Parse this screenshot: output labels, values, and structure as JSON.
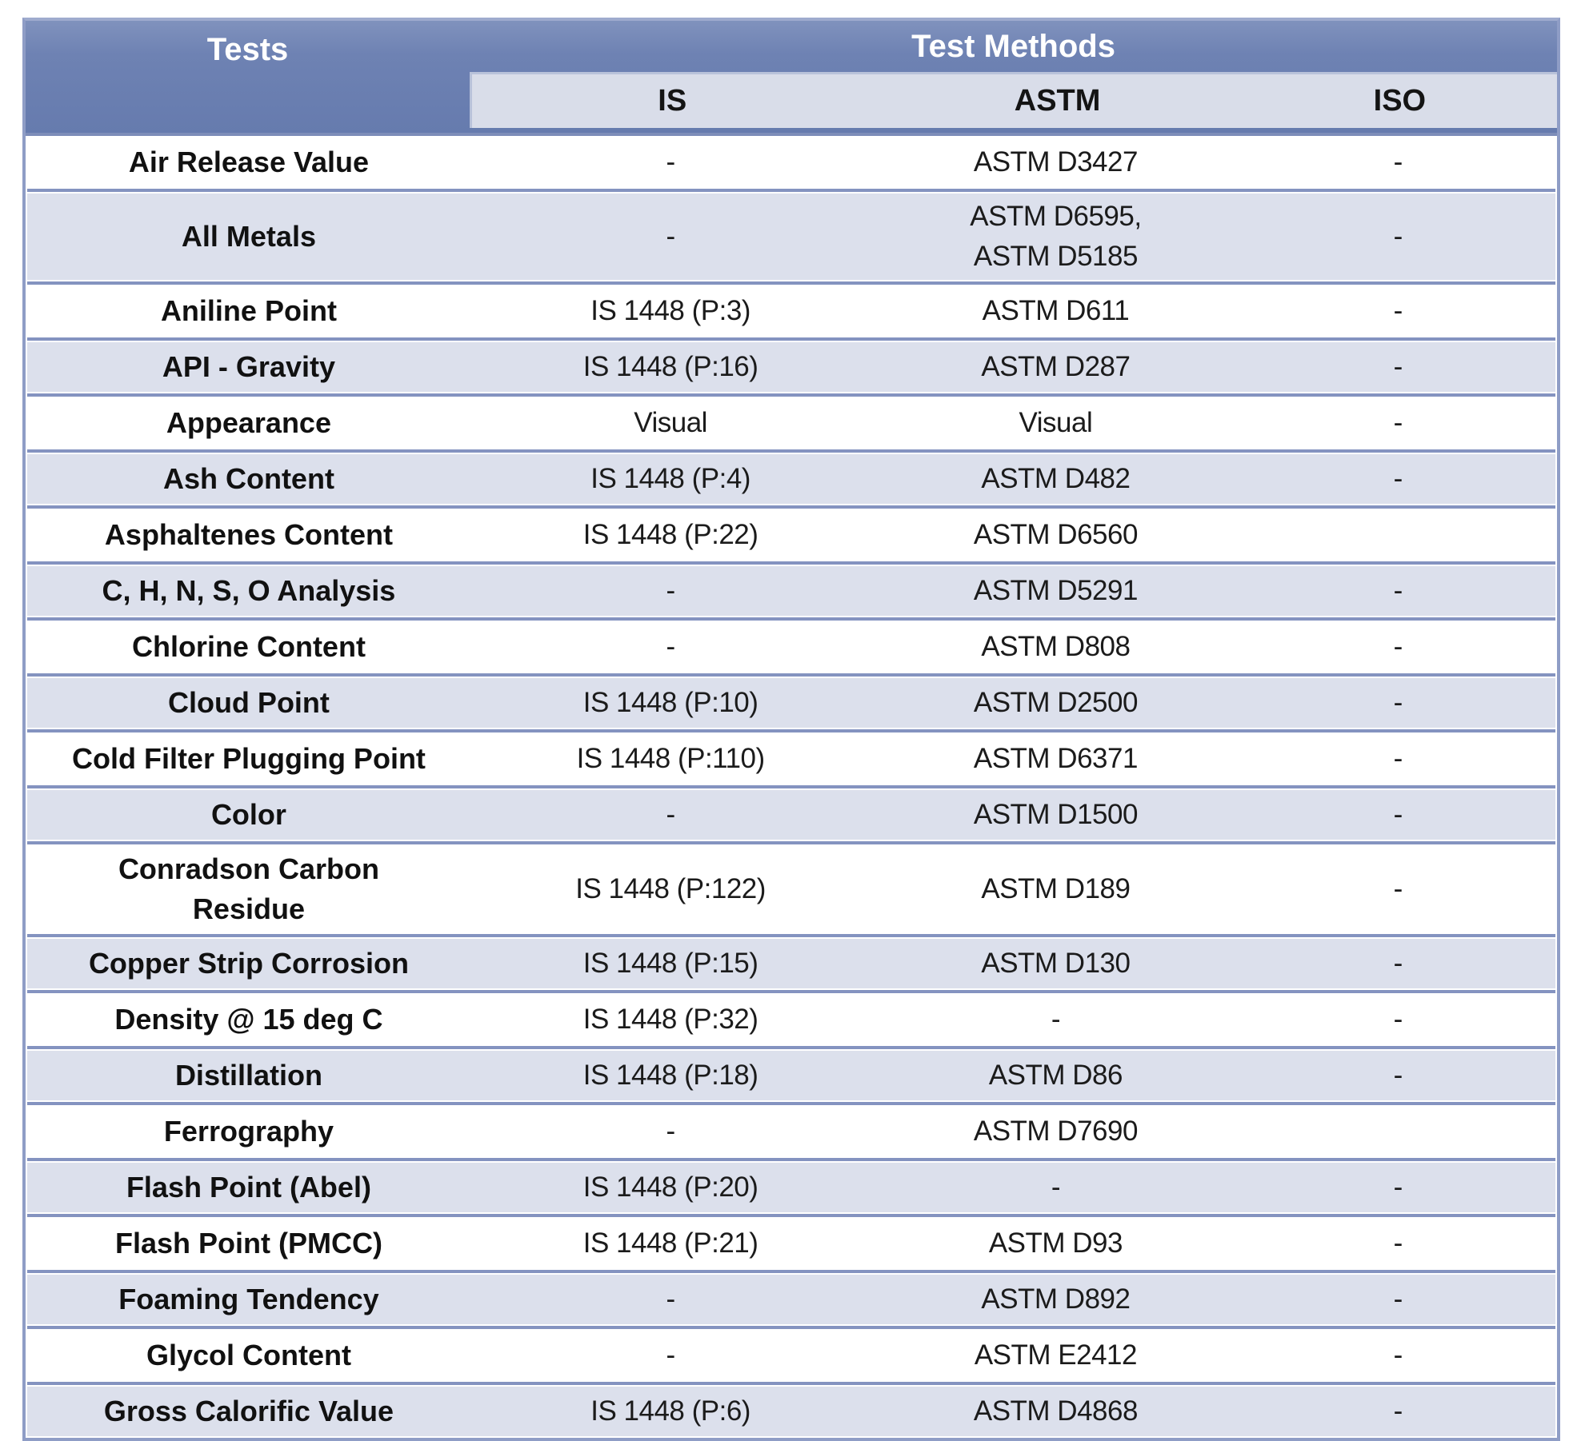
{
  "table": {
    "col1_header": "Tests",
    "methods_header": "Test Methods",
    "subheaders": [
      "IS",
      "ASTM",
      "ISO"
    ],
    "rows": [
      {
        "test": "Air Release Value",
        "is": "-",
        "astm": "ASTM D3427",
        "iso": "-"
      },
      {
        "test": "All Metals",
        "is": "-",
        "astm": "ASTM D6595,\nASTM D5185",
        "iso": "-"
      },
      {
        "test": "Aniline Point",
        "is": "IS 1448 (P:3)",
        "astm": "ASTM D611",
        "iso": "-"
      },
      {
        "test": "API - Gravity",
        "is": "IS 1448 (P:16)",
        "astm": "ASTM D287",
        "iso": "-"
      },
      {
        "test": "Appearance",
        "is": "Visual",
        "astm": "Visual",
        "iso": "-"
      },
      {
        "test": "Ash Content",
        "is": "IS 1448 (P:4)",
        "astm": "ASTM D482",
        "iso": "-"
      },
      {
        "test": "Asphaltenes Content",
        "is": "IS 1448 (P:22)",
        "astm": "ASTM D6560",
        "iso": ""
      },
      {
        "test": "C, H, N, S, O Analysis",
        "is": "-",
        "astm": "ASTM D5291",
        "iso": "-"
      },
      {
        "test": "Chlorine Content",
        "is": "-",
        "astm": "ASTM D808",
        "iso": "-"
      },
      {
        "test": "Cloud Point",
        "is": "IS 1448 (P:10)",
        "astm": "ASTM D2500",
        "iso": "-"
      },
      {
        "test": "Cold Filter Plugging Point",
        "is": "IS 1448 (P:110)",
        "astm": "ASTM D6371",
        "iso": "-"
      },
      {
        "test": "Color",
        "is": "-",
        "astm": "ASTM D1500",
        "iso": "-"
      },
      {
        "test": "Conradson Carbon\nResidue",
        "is": "IS 1448 (P:122)",
        "astm": "ASTM D189",
        "iso": "-"
      },
      {
        "test": "Copper Strip Corrosion",
        "is": "IS 1448 (P:15)",
        "astm": "ASTM D130",
        "iso": "-"
      },
      {
        "test": "Density @ 15 deg C",
        "is": "IS 1448 (P:32)",
        "astm": "-",
        "iso": "-"
      },
      {
        "test": "Distillation",
        "is": "IS 1448 (P:18)",
        "astm": "ASTM D86",
        "iso": "-"
      },
      {
        "test": "Ferrography",
        "is": "-",
        "astm": "ASTM D7690",
        "iso": ""
      },
      {
        "test": "Flash Point (Abel)",
        "is": "IS 1448 (P:20)",
        "astm": "-",
        "iso": "-"
      },
      {
        "test": "Flash Point (PMCC)",
        "is": "IS 1448 (P:21)",
        "astm": "ASTM D93",
        "iso": "-"
      },
      {
        "test": "Foaming Tendency",
        "is": "-",
        "astm": "ASTM D892",
        "iso": "-"
      },
      {
        "test": "Glycol Content",
        "is": "-",
        "astm": "ASTM E2412",
        "iso": "-"
      },
      {
        "test": "Gross Calorific Value",
        "is": "IS 1448 (P:6)",
        "astm": "ASTM D4868",
        "iso": "-"
      }
    ],
    "colors": {
      "header_blue": "#6e82b3",
      "border_blue": "#8493c0",
      "subheader_bg": "#d9dde9",
      "row_alt_bg": "#dce0ec"
    }
  }
}
